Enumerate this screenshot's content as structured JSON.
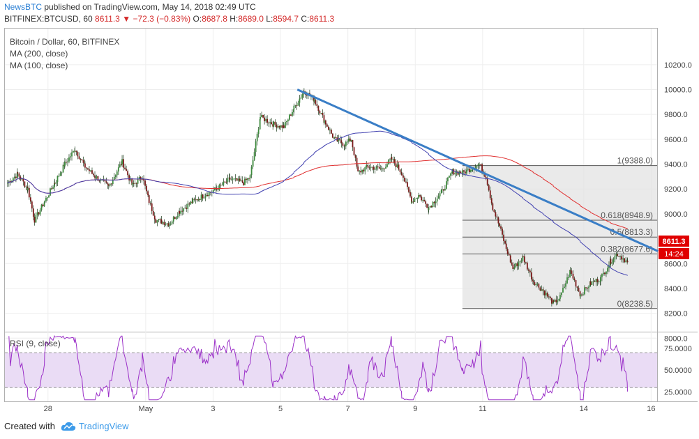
{
  "header": {
    "author": "NewsBTC",
    "published_text": "published on TradingView.com, May 14, 2018 02:49 UTC",
    "symbol": "BITFINEX:BTCUSD, 60",
    "last_price": "8611.3",
    "change": "−72.3 (−0.83%)",
    "ohlc": {
      "o_label": "O:",
      "o": "8687.8",
      "h_label": "H:",
      "h": "8689.0",
      "l_label": "L:",
      "l": "8594.7",
      "c_label": "C:",
      "c": "8611.3"
    }
  },
  "legend": {
    "title": "Bitcoin / Dollar, 60, BITFINEX",
    "ma200": "MA (200, close)",
    "ma100": "MA (100, close)",
    "rsi": "RSI (9, close)"
  },
  "badges": {
    "price": "8611.3",
    "countdown": "14:24"
  },
  "footer": {
    "created_with": "Created with",
    "brand": "TradingView"
  },
  "colors": {
    "up": "#3d8b3d",
    "down": "#7a1a1a",
    "ma200": "#e03030",
    "ma100": "#4040b0",
    "trendline": "#3a7ec6",
    "fib_box": "#e3e3e3",
    "rsi": "#9b30c8",
    "rsi_band": "#eadcf5",
    "badge": "#e00000"
  },
  "chart_data": {
    "type": "candlestick",
    "price_axis": {
      "ylim": [
        7750,
        10350
      ],
      "ticks": [
        "10200.0",
        "10000.0",
        "9800.0",
        "9600.0",
        "9400.0",
        "9200.0",
        "9000.0",
        "8800.0",
        "8600.0",
        "8400.0",
        "8200.0",
        "8000.0"
      ],
      "tick_values": [
        10200,
        10000,
        9800,
        9600,
        9400,
        9200,
        9000,
        8800,
        8600,
        8400,
        8200,
        8000
      ]
    },
    "time_axis": {
      "labels": [
        "28",
        "May",
        "3",
        "5",
        "7",
        "9",
        "11",
        "14",
        "16"
      ],
      "positions_days": [
        -2.9,
        0,
        2.0,
        4.0,
        6.0,
        8.0,
        10.0,
        13.0,
        15.0
      ]
    },
    "fibonacci": [
      {
        "label": "1(9388.0)",
        "value": 9388.0
      },
      {
        "label": "0.618(8948.9)",
        "value": 8948.9
      },
      {
        "label": "0.5(8813.3)",
        "value": 8813.3
      },
      {
        "label": "0.382(8677.6)",
        "value": 8677.6
      },
      {
        "label": "0(8238.5)",
        "value": 8238.5
      }
    ],
    "fib_range_days": [
      9.4,
      15.5
    ],
    "trendline": [
      {
        "d": 4.5,
        "p": 10000
      },
      {
        "d": 15.2,
        "p": 8700
      }
    ],
    "ohlc_keypoints": [
      [
        -4.1,
        9250
      ],
      [
        -3.8,
        9320
      ],
      [
        -3.5,
        9200
      ],
      [
        -3.3,
        8950
      ],
      [
        -3.0,
        9100
      ],
      [
        -2.7,
        9250
      ],
      [
        -2.4,
        9400
      ],
      [
        -2.1,
        9520
      ],
      [
        -1.8,
        9380
      ],
      [
        -1.5,
        9300
      ],
      [
        -1.1,
        9220
      ],
      [
        -0.7,
        9420
      ],
      [
        -0.4,
        9230
      ],
      [
        -0.1,
        9300
      ],
      [
        0.1,
        9100
      ],
      [
        0.3,
        8950
      ],
      [
        0.7,
        8920
      ],
      [
        1.0,
        9020
      ],
      [
        1.4,
        9100
      ],
      [
        1.8,
        9160
      ],
      [
        2.1,
        9200
      ],
      [
        2.5,
        9280
      ],
      [
        2.9,
        9250
      ],
      [
        3.1,
        9300
      ],
      [
        3.4,
        9780
      ],
      [
        3.8,
        9720
      ],
      [
        4.1,
        9700
      ],
      [
        4.4,
        9850
      ],
      [
        4.7,
        9990
      ],
      [
        5.0,
        9920
      ],
      [
        5.3,
        9750
      ],
      [
        5.6,
        9600
      ],
      [
        5.9,
        9560
      ],
      [
        6.1,
        9600
      ],
      [
        6.3,
        9330
      ],
      [
        6.6,
        9380
      ],
      [
        7.0,
        9360
      ],
      [
        7.3,
        9440
      ],
      [
        7.6,
        9330
      ],
      [
        7.9,
        9100
      ],
      [
        8.1,
        9150
      ],
      [
        8.4,
        9050
      ],
      [
        8.8,
        9180
      ],
      [
        9.1,
        9340
      ],
      [
        9.4,
        9330
      ],
      [
        9.7,
        9370
      ],
      [
        9.9,
        9400
      ],
      [
        10.1,
        9300
      ],
      [
        10.3,
        9050
      ],
      [
        10.5,
        8900
      ],
      [
        10.7,
        8720
      ],
      [
        10.9,
        8560
      ],
      [
        11.2,
        8650
      ],
      [
        11.5,
        8460
      ],
      [
        11.8,
        8380
      ],
      [
        12.1,
        8280
      ],
      [
        12.3,
        8330
      ],
      [
        12.6,
        8540
      ],
      [
        12.9,
        8350
      ],
      [
        13.2,
        8440
      ],
      [
        13.5,
        8480
      ],
      [
        13.8,
        8620
      ],
      [
        14.0,
        8680
      ],
      [
        14.3,
        8611
      ]
    ],
    "rsi": {
      "levels": [
        "75.0000",
        "50.0000",
        "25.0000"
      ],
      "level_values": [
        75,
        50,
        25
      ],
      "band": [
        30,
        70
      ],
      "range": [
        15,
        90
      ]
    }
  }
}
